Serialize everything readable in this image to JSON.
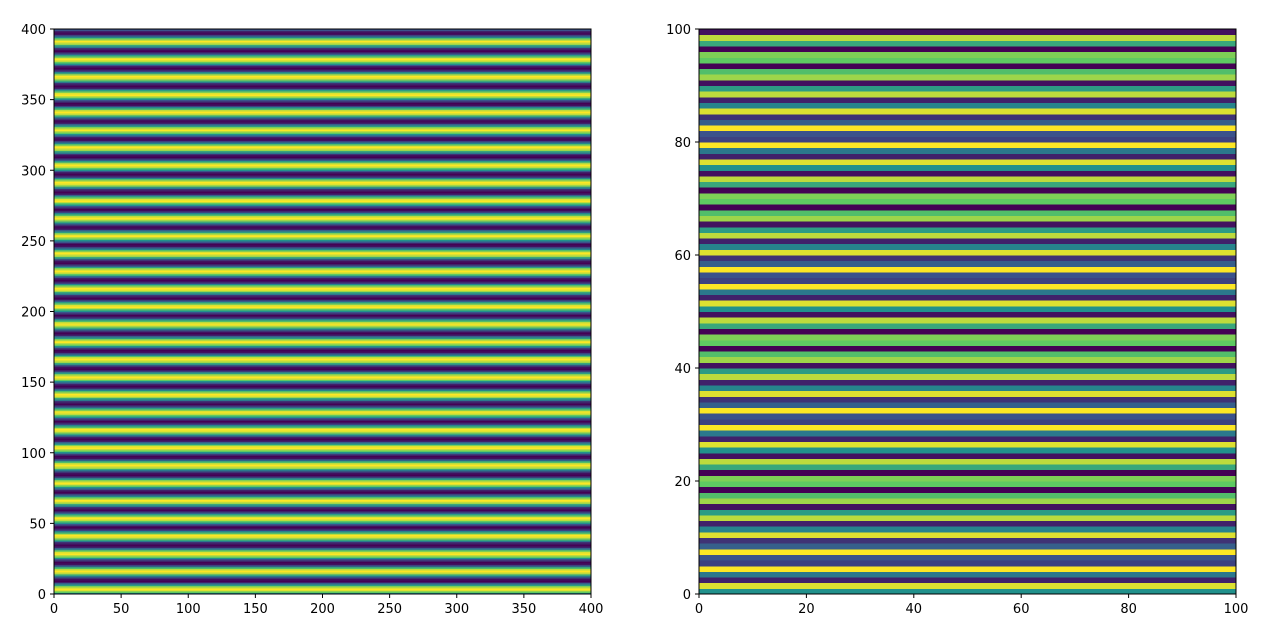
{
  "chart_data": [
    {
      "type": "heatmap",
      "colormap": "viridis",
      "xlim": [
        0,
        400
      ],
      "ylim": [
        0,
        400
      ],
      "xticks": [
        0,
        50,
        100,
        150,
        200,
        250,
        300,
        350,
        400
      ],
      "yticks": [
        0,
        50,
        100,
        150,
        200,
        250,
        300,
        350,
        400
      ],
      "values": [
        0,
        0.5,
        0.8,
        1,
        0.9,
        0.6,
        0.1,
        -0.4,
        -0.8,
        -1,
        -0.9,
        -0.7,
        -0.2,
        0.2,
        0.7,
        0.9,
        1,
        0.8,
        0.4,
        -0.1,
        -0.6,
        -0.9,
        -1,
        -0.8,
        -0.5,
        0,
        0.5,
        0.8,
        1,
        0.9,
        0.6,
        0.1,
        -0.4,
        -0.8,
        -1,
        -0.9,
        -0.7,
        -0.2,
        0.2,
        0.7,
        0.9,
        1,
        0.8,
        0.4,
        -0.1,
        -0.6,
        -0.9,
        -1,
        -0.8,
        -0.5,
        0,
        0.5,
        0.8,
        1,
        0.9,
        0.6,
        0.1,
        -0.4,
        -0.8,
        -1,
        -0.9,
        -0.7,
        -0.2,
        0.2,
        0.7,
        0.9,
        1,
        0.8,
        0.4,
        -0.1,
        -0.6,
        -0.9,
        -1,
        -0.8,
        -0.5,
        0,
        0.5,
        0.8,
        1,
        0.9,
        0.6,
        0.1,
        -0.4,
        -0.8,
        -1,
        -0.9,
        -0.7,
        -0.2,
        0.2,
        0.7,
        0.9,
        1,
        0.8,
        0.4,
        -0.1,
        -0.6,
        -0.9,
        -1,
        -0.8,
        -0.5,
        0,
        0.5,
        0.8,
        1,
        0.9,
        0.6,
        0.1,
        -0.4,
        -0.8,
        -1,
        -0.9,
        -0.7,
        -0.2,
        0.2,
        0.7,
        0.9,
        1,
        0.8,
        0.4,
        -0.1,
        -0.6,
        -0.9,
        -1,
        -0.8,
        -0.5,
        0,
        0.5,
        0.8,
        1,
        0.9,
        0.6,
        0.1,
        -0.4,
        -0.8,
        -1,
        -0.9,
        -0.7,
        -0.2,
        0.2,
        0.7,
        0.9,
        1,
        0.8,
        0.4,
        -0.1,
        -0.6,
        -0.9,
        -1,
        -0.8,
        -0.5,
        0,
        0.5,
        0.8,
        1,
        0.9,
        0.6,
        0.1,
        -0.4,
        -0.8,
        -1,
        -0.9,
        -0.7,
        -0.2,
        0.2,
        0.7,
        0.9,
        1,
        0.8,
        0.4,
        -0.1,
        -0.6,
        -0.9,
        -1,
        -0.8,
        -0.5,
        0,
        0.5,
        0.8,
        1,
        0.9,
        0.6,
        0.1,
        -0.4,
        -0.8,
        -1,
        -0.9,
        -0.7,
        -0.2,
        0.2,
        0.7,
        0.9,
        1,
        0.8,
        0.4,
        -0.1,
        -0.6,
        -0.9,
        -1,
        -0.8,
        -0.5,
        0,
        0.5,
        0.8,
        1,
        0.9,
        0.6,
        0.1,
        -0.4,
        -0.8,
        -1,
        -0.9,
        -0.7,
        -0.2,
        0.2,
        0.7,
        0.9,
        1,
        0.8,
        0.4,
        -0.1,
        -0.6,
        -0.9,
        -1,
        -0.8,
        -0.5,
        0,
        0.5,
        0.8,
        1,
        0.9,
        0.6,
        0.1,
        -0.4,
        -0.8,
        -1,
        -0.9,
        -0.7,
        -0.2,
        0.2,
        0.7,
        0.9,
        1,
        0.8,
        0.4,
        -0.1,
        -0.6,
        -0.9,
        -1,
        -0.8,
        -0.5,
        0,
        0.5,
        0.8,
        1,
        0.9,
        0.6,
        0.1,
        -0.4,
        -0.8,
        -1,
        -0.9,
        -0.7,
        -0.2,
        0.2,
        0.7,
        0.9,
        1,
        0.8,
        0.4,
        -0.1,
        -0.6,
        -0.9,
        -1,
        -0.8,
        -0.5,
        0,
        0.5,
        0.8,
        1,
        0.9,
        0.6,
        0.1,
        -0.4,
        -0.8,
        -1,
        -0.9,
        -0.7,
        -0.2,
        0.2,
        0.7,
        0.9,
        1,
        0.8,
        0.4,
        -0.1,
        -0.6,
        -0.9,
        -1,
        -0.8,
        -0.5,
        0,
        0.5,
        0.8,
        1,
        0.9,
        0.6,
        0.1,
        -0.4,
        -0.8,
        -1,
        -0.9,
        -0.7,
        -0.2,
        0.2,
        0.7,
        0.9,
        1,
        0.8,
        0.4,
        -0.1,
        -0.6,
        -0.9,
        -1,
        -0.8,
        -0.5,
        0,
        0.5,
        0.8,
        1,
        0.9,
        0.6,
        0.1,
        -0.4,
        -0.8,
        -1,
        -0.9,
        -0.7,
        -0.2,
        0.2,
        0.7,
        0.9,
        1,
        0.8,
        0.4,
        -0.1,
        -0.6,
        -0.9,
        -1,
        -0.8,
        -0.5,
        0,
        0.5,
        0.8,
        1,
        0.9,
        0.6,
        0.1,
        -0.4,
        -0.8,
        -1,
        -0.9,
        -0.7,
        -0.2,
        0.2,
        0.7,
        0.9,
        1,
        0.8,
        0.4,
        -0.1,
        -0.6,
        -0.9,
        -1,
        -0.8,
        -0.5,
        0,
        0.5,
        0.8,
        1,
        0.9,
        0.6,
        0.1,
        -0.4,
        -0.8,
        -1,
        -0.9,
        -0.7,
        -0.2,
        0.2,
        0.7,
        0.9,
        1,
        0.8,
        0.4,
        -0.1,
        -0.6,
        -0.9,
        -1,
        -0.8,
        -0.5
      ]
    },
    {
      "type": "heatmap",
      "colormap": "viridis",
      "xlim": [
        0,
        100
      ],
      "ylim": [
        0,
        100
      ],
      "xticks": [
        0,
        20,
        40,
        60,
        80,
        100
      ],
      "yticks": [
        0,
        20,
        40,
        60,
        80,
        100
      ],
      "values": [
        0,
        0.9,
        -0.8,
        -0.2,
        1,
        -0.6,
        -0.5,
        1,
        -0.4,
        -0.7,
        0.9,
        -0.1,
        -0.8,
        0.8,
        0.1,
        -0.9,
        0.7,
        0.4,
        -1,
        0.5,
        0.6,
        -1,
        0.2,
        0.8,
        -0.9,
        0,
        0.9,
        -0.8,
        -0.2,
        1,
        -0.6,
        -0.5,
        1,
        -0.4,
        -0.7,
        0.9,
        -0.1,
        -0.8,
        0.8,
        0.1,
        -0.9,
        0.7,
        0.4,
        -1,
        0.5,
        0.6,
        -1,
        0.2,
        0.8,
        -0.9,
        0,
        0.9,
        -0.8,
        -0.2,
        1,
        -0.6,
        -0.5,
        1,
        -0.4,
        -0.7,
        0.9,
        -0.1,
        -0.8,
        0.8,
        0.1,
        -0.9,
        0.7,
        0.4,
        -1,
        0.5,
        0.6,
        -1,
        0.2,
        0.8,
        -0.9,
        0,
        0.9,
        -0.8,
        -0.2,
        1,
        -0.6,
        -0.5,
        1,
        -0.4,
        -0.7,
        0.9,
        -0.1,
        -0.8,
        0.8,
        0.1,
        -0.9,
        0.7,
        0.4,
        -1,
        0.5,
        0.6,
        -1,
        0.2,
        0.8,
        -0.9
      ]
    }
  ]
}
